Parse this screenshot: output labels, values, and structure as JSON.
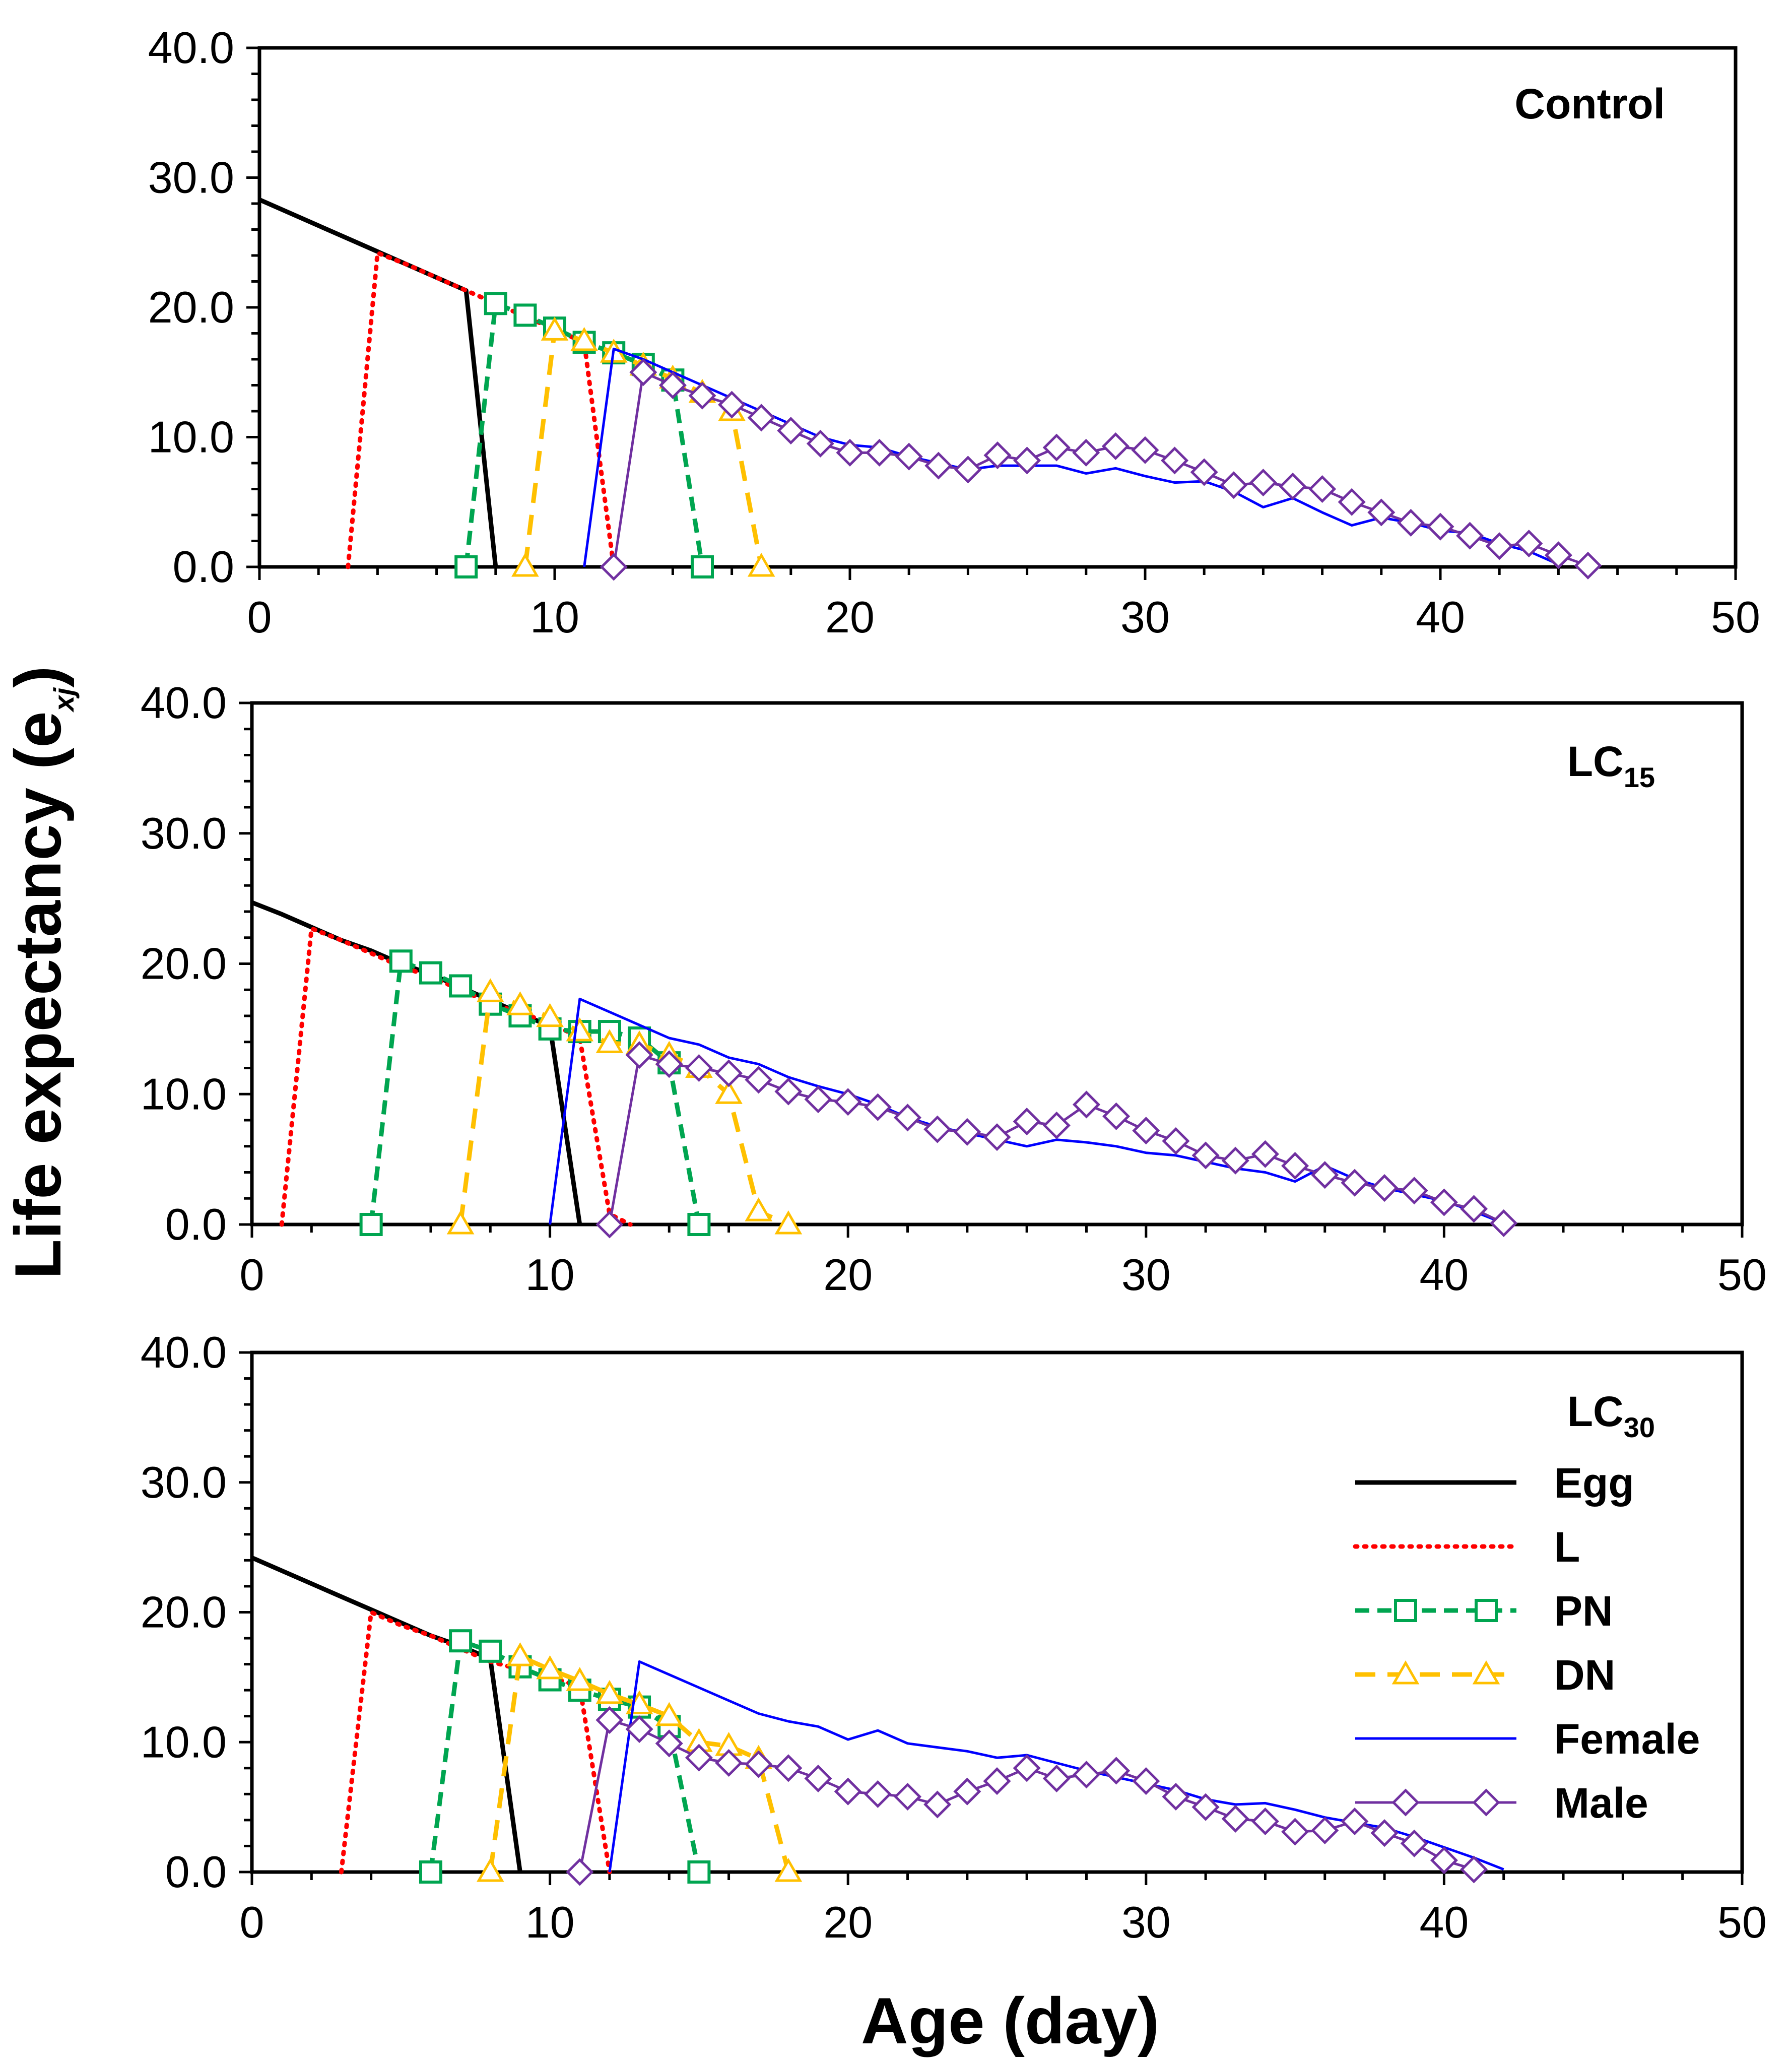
{
  "figure": {
    "ylabel": "Life expectancy",
    "ylabel_symbol": "e",
    "ylabel_subscript": "xj",
    "xlabel": "Age (day)"
  },
  "legend": {
    "entries": [
      {
        "key": "egg",
        "label": "Egg"
      },
      {
        "key": "larva",
        "label": "L"
      },
      {
        "key": "protonymph",
        "label": "PN"
      },
      {
        "key": "deutonymph",
        "label": "DN"
      },
      {
        "key": "female",
        "label": "Female"
      },
      {
        "key": "male",
        "label": "Male"
      }
    ]
  },
  "styles": {
    "egg": {
      "color": "#000000",
      "dash": "",
      "marker": "none"
    },
    "larva": {
      "color": "#ff0000",
      "dash": "4,14",
      "marker": "none"
    },
    "protonymph": {
      "color": "#00a550",
      "dash": "28,16",
      "marker": "square"
    },
    "deutonymph": {
      "color": "#ffc000",
      "dash": "40,24",
      "marker": "triangle"
    },
    "female": {
      "color": "#0000ff",
      "dash": "",
      "marker": "none"
    },
    "male": {
      "color": "#7030a0",
      "dash": "",
      "marker": "diamond"
    }
  },
  "chart_data": [
    {
      "type": "line",
      "title": "Control",
      "title_main": "Control",
      "title_sub": "",
      "xlim": [
        0,
        50
      ],
      "ylim": [
        0,
        40
      ],
      "xticks": [
        "0",
        "10",
        "20",
        "30",
        "40",
        "50"
      ],
      "yticks": [
        "0.0",
        "10.0",
        "20.0",
        "30.0",
        "40.0"
      ],
      "xlabel": "Age (day)",
      "ylabel": "Life expectancy (exj)",
      "series": [
        {
          "key": "egg",
          "name": "Egg",
          "x": [
            0,
            1,
            2,
            3,
            4,
            5,
            6,
            7,
            8
          ],
          "y": [
            28.3,
            27.3,
            26.3,
            25.3,
            24.3,
            23.3,
            22.3,
            21.3,
            0
          ]
        },
        {
          "key": "larva",
          "name": "L",
          "x": [
            3,
            4,
            5,
            6,
            7,
            8,
            9,
            10,
            11,
            12
          ],
          "y": [
            0,
            24.2,
            23.3,
            22.3,
            21.3,
            20.3,
            19.3,
            18.3,
            17.3,
            0
          ]
        },
        {
          "key": "protonymph",
          "name": "PN",
          "x": [
            7,
            8,
            9,
            10,
            11,
            12,
            13,
            14,
            15
          ],
          "y": [
            0,
            20.3,
            19.4,
            18.4,
            17.3,
            16.5,
            15.6,
            14.4,
            0
          ]
        },
        {
          "key": "deutonymph",
          "name": "DN",
          "x": [
            9,
            10,
            11,
            12,
            13,
            14,
            15,
            16,
            17
          ],
          "y": [
            0,
            18.2,
            17.4,
            16.5,
            15.5,
            14.5,
            13.4,
            12.0,
            0
          ]
        },
        {
          "key": "female",
          "name": "Female",
          "x": [
            11,
            12,
            13,
            14,
            15,
            16,
            17,
            18,
            19,
            20,
            21,
            22,
            23,
            24,
            25,
            26,
            27,
            28,
            29,
            30,
            31,
            32,
            33,
            34,
            35,
            36,
            37,
            38,
            39,
            40,
            41,
            42,
            43,
            44
          ],
          "y": [
            0,
            16.8,
            16.0,
            15.0,
            14.0,
            13.0,
            12.0,
            11.0,
            10.0,
            9.4,
            9.2,
            8.5,
            8.0,
            7.5,
            7.8,
            7.8,
            7.8,
            7.2,
            7.6,
            7.0,
            6.5,
            6.6,
            5.8,
            4.6,
            5.3,
            4.2,
            3.2,
            3.8,
            3.4,
            2.8,
            2.6,
            1.8,
            1.2,
            0.2
          ]
        },
        {
          "key": "male",
          "name": "Male",
          "x": [
            12,
            13,
            14,
            15,
            16,
            17,
            18,
            19,
            20,
            21,
            22,
            23,
            24,
            25,
            26,
            27,
            28,
            29,
            30,
            31,
            32,
            33,
            34,
            35,
            36,
            37,
            38,
            39,
            40,
            41,
            42,
            43,
            44,
            45
          ],
          "y": [
            0,
            15.0,
            14.0,
            13.2,
            12.5,
            11.5,
            10.5,
            9.5,
            8.8,
            8.8,
            8.5,
            7.8,
            7.5,
            8.6,
            8.2,
            9.2,
            8.8,
            9.3,
            9.0,
            8.2,
            7.3,
            6.3,
            6.5,
            6.2,
            6.0,
            5.0,
            4.2,
            3.4,
            3.1,
            2.4,
            1.6,
            1.8,
            0.9,
            0.1
          ]
        }
      ]
    },
    {
      "type": "line",
      "title": "LC15",
      "title_main": "LC",
      "title_sub": "15",
      "xlim": [
        0,
        50
      ],
      "ylim": [
        0,
        40
      ],
      "xticks": [
        "0",
        "10",
        "20",
        "30",
        "40",
        "50"
      ],
      "yticks": [
        "0.0",
        "10.0",
        "20.0",
        "30.0",
        "40.0"
      ],
      "xlabel": "Age (day)",
      "ylabel": "Life expectancy (exj)",
      "series": [
        {
          "key": "egg",
          "name": "Egg",
          "x": [
            0,
            1,
            2,
            3,
            4,
            5,
            6,
            7,
            8,
            9,
            10,
            11
          ],
          "y": [
            24.7,
            23.8,
            22.8,
            21.8,
            21.0,
            20.0,
            19.2,
            18.2,
            17.2,
            16.2,
            15.2,
            0
          ]
        },
        {
          "key": "larva",
          "name": "L",
          "x": [
            1,
            2,
            3,
            4,
            5,
            6,
            7,
            8,
            9,
            10,
            11,
            12,
            12.7
          ],
          "y": [
            0,
            22.7,
            21.8,
            20.8,
            19.8,
            19.0,
            18.0,
            17.0,
            16.2,
            15.5,
            14.3,
            0.8,
            0
          ]
        },
        {
          "key": "protonymph",
          "name": "PN",
          "x": [
            4,
            5,
            6,
            7,
            8,
            9,
            10,
            11,
            12,
            13,
            14,
            15
          ],
          "y": [
            0,
            20.2,
            19.3,
            18.3,
            16.9,
            16.0,
            15.0,
            14.8,
            14.8,
            14.3,
            12.4,
            0
          ]
        },
        {
          "key": "deutonymph",
          "name": "DN",
          "x": [
            7,
            8,
            9,
            10,
            11,
            12,
            13,
            14,
            15,
            16,
            17,
            18
          ],
          "y": [
            0,
            17.8,
            16.8,
            15.9,
            14.8,
            13.9,
            13.8,
            13.0,
            12.0,
            10.0,
            1.0,
            0
          ]
        },
        {
          "key": "female",
          "name": "Female",
          "x": [
            10,
            11,
            12,
            13,
            14,
            15,
            16,
            17,
            18,
            19,
            20,
            21,
            22,
            23,
            24,
            25,
            26,
            27,
            28,
            29,
            30,
            31,
            32,
            33,
            34,
            35,
            36,
            37,
            38,
            39,
            40,
            41,
            42
          ],
          "y": [
            0,
            17.3,
            16.3,
            15.3,
            14.3,
            13.8,
            12.8,
            12.3,
            11.3,
            10.6,
            10.0,
            9.2,
            8.2,
            7.5,
            7.0,
            6.5,
            6.0,
            6.5,
            6.3,
            6.0,
            5.5,
            5.3,
            4.8,
            4.3,
            4.0,
            3.3,
            4.5,
            3.5,
            2.8,
            2.3,
            1.8,
            1.0,
            0.1
          ]
        },
        {
          "key": "male",
          "name": "Male",
          "x": [
            12,
            13,
            14,
            15,
            16,
            17,
            18,
            19,
            20,
            21,
            22,
            23,
            24,
            25,
            26,
            27,
            28,
            29,
            30,
            31,
            32,
            33,
            34,
            35,
            36,
            37,
            38,
            39,
            40,
            41,
            42
          ],
          "y": [
            0,
            13.0,
            12.3,
            12.0,
            11.6,
            11.1,
            10.2,
            9.6,
            9.4,
            9.0,
            8.2,
            7.3,
            7.1,
            6.7,
            7.9,
            7.6,
            9.2,
            8.3,
            7.2,
            6.4,
            5.3,
            4.9,
            5.4,
            4.5,
            3.8,
            3.2,
            2.8,
            2.6,
            1.7,
            1.2,
            0.1
          ]
        }
      ]
    },
    {
      "type": "line",
      "title": "LC30",
      "title_main": "LC",
      "title_sub": "30",
      "xlim": [
        0,
        50
      ],
      "ylim": [
        0,
        40
      ],
      "xticks": [
        "0",
        "10",
        "20",
        "30",
        "40",
        "50"
      ],
      "yticks": [
        "0.0",
        "10.0",
        "20.0",
        "30.0",
        "40.0"
      ],
      "xlabel": "Age (day)",
      "ylabel": "Life expectancy (exj)",
      "series": [
        {
          "key": "egg",
          "name": "Egg",
          "x": [
            0,
            1,
            2,
            3,
            4,
            5,
            6,
            7,
            8,
            9
          ],
          "y": [
            24.2,
            23.2,
            22.2,
            21.2,
            20.2,
            19.2,
            18.2,
            17.4,
            16.4,
            0
          ]
        },
        {
          "key": "larva",
          "name": "L",
          "x": [
            3,
            4,
            5,
            6,
            7,
            8,
            9,
            10,
            11,
            12
          ],
          "y": [
            0,
            20.0,
            19.0,
            18.2,
            17.2,
            16.2,
            15.6,
            15.0,
            14.3,
            0
          ]
        },
        {
          "key": "protonymph",
          "name": "PN",
          "x": [
            6,
            7,
            8,
            9,
            10,
            11,
            12,
            13,
            14,
            15
          ],
          "y": [
            0,
            17.8,
            17.0,
            15.8,
            14.8,
            14.0,
            13.3,
            12.7,
            11.2,
            0
          ]
        },
        {
          "key": "deutonymph",
          "name": "DN",
          "x": [
            8,
            9,
            10,
            11,
            12,
            13,
            14,
            15,
            16,
            17,
            18
          ],
          "y": [
            0,
            16.6,
            15.6,
            14.7,
            13.7,
            12.9,
            12.0,
            10.0,
            9.7,
            8.7,
            0
          ]
        },
        {
          "key": "female",
          "name": "Female",
          "x": [
            12,
            13,
            14,
            15,
            16,
            17,
            18,
            19,
            20,
            21,
            22,
            23,
            24,
            25,
            26,
            27,
            28,
            29,
            30,
            31,
            32,
            33,
            34,
            35,
            36,
            37,
            38,
            39,
            40,
            41,
            42
          ],
          "y": [
            0,
            16.2,
            15.2,
            14.2,
            13.2,
            12.2,
            11.6,
            11.2,
            10.2,
            10.9,
            9.9,
            9.6,
            9.3,
            8.8,
            9.0,
            8.4,
            7.8,
            7.3,
            6.8,
            6.3,
            5.6,
            5.2,
            5.3,
            4.8,
            4.2,
            3.8,
            3.4,
            2.7,
            1.9,
            1.1,
            0.2
          ]
        },
        {
          "key": "male",
          "name": "Male",
          "x": [
            11,
            12,
            13,
            14,
            15,
            16,
            17,
            18,
            19,
            20,
            21,
            22,
            23,
            24,
            25,
            26,
            27,
            28,
            29,
            30,
            31,
            32,
            33,
            34,
            35,
            36,
            37,
            38,
            39,
            40,
            41
          ],
          "y": [
            0,
            11.7,
            11.0,
            9.9,
            8.8,
            8.4,
            8.3,
            8.0,
            7.2,
            6.2,
            6.0,
            5.8,
            5.2,
            6.2,
            7.0,
            8.0,
            7.2,
            7.5,
            7.8,
            7.0,
            5.8,
            5.0,
            4.1,
            3.9,
            3.1,
            3.2,
            3.9,
            3.0,
            2.2,
            0.9,
            0.2
          ]
        }
      ]
    }
  ]
}
